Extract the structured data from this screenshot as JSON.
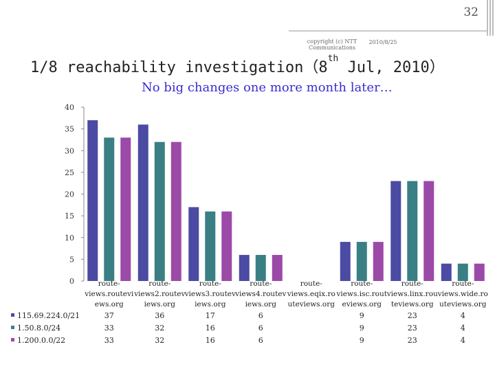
{
  "page": {
    "number": "32",
    "copyright": "copyright (c) NTT Communications",
    "date": "2010/8/25",
    "title_pre": "1/8 reachability investigation（8",
    "title_sup": "th",
    "title_post": " Jul, 2010）",
    "subtitle": "No big changes one more month later…"
  },
  "colors": {
    "series1": "#4b4ba4",
    "series2": "#3a7f84",
    "series3": "#9b4aa8"
  },
  "chart_data": {
    "type": "bar",
    "title": "1/8 reachability investigation（8th Jul, 2010）",
    "ylim": [
      0,
      40
    ],
    "yticks": [
      0,
      5,
      10,
      15,
      20,
      25,
      30,
      35,
      40
    ],
    "categories": [
      [
        "route-",
        "views.routevi",
        "ews.org"
      ],
      [
        "route-",
        "views2.routev",
        "iews.org"
      ],
      [
        "route-",
        "views3.routev",
        "iews.org"
      ],
      [
        "route-",
        "views4.routev",
        "iews.org"
      ],
      [
        "route-",
        "views.eqix.ro",
        "uteviews.org"
      ],
      [
        "route-",
        "views.isc.rout",
        "eviews.org"
      ],
      [
        "route-",
        "views.linx.rou",
        "teviews.org"
      ],
      [
        "route-",
        "views.wide.ro",
        "uteviews.org"
      ]
    ],
    "series": [
      {
        "name": "115.69.224.0/21",
        "values": [
          37,
          36,
          17,
          6,
          null,
          9,
          23,
          4
        ]
      },
      {
        "name": "1.50.8.0/24",
        "values": [
          33,
          32,
          16,
          6,
          null,
          9,
          23,
          4
        ]
      },
      {
        "name": "1.200.0.0/22",
        "values": [
          33,
          32,
          16,
          6,
          null,
          9,
          23,
          4
        ]
      }
    ],
    "grid": false,
    "legend": "table-below"
  }
}
